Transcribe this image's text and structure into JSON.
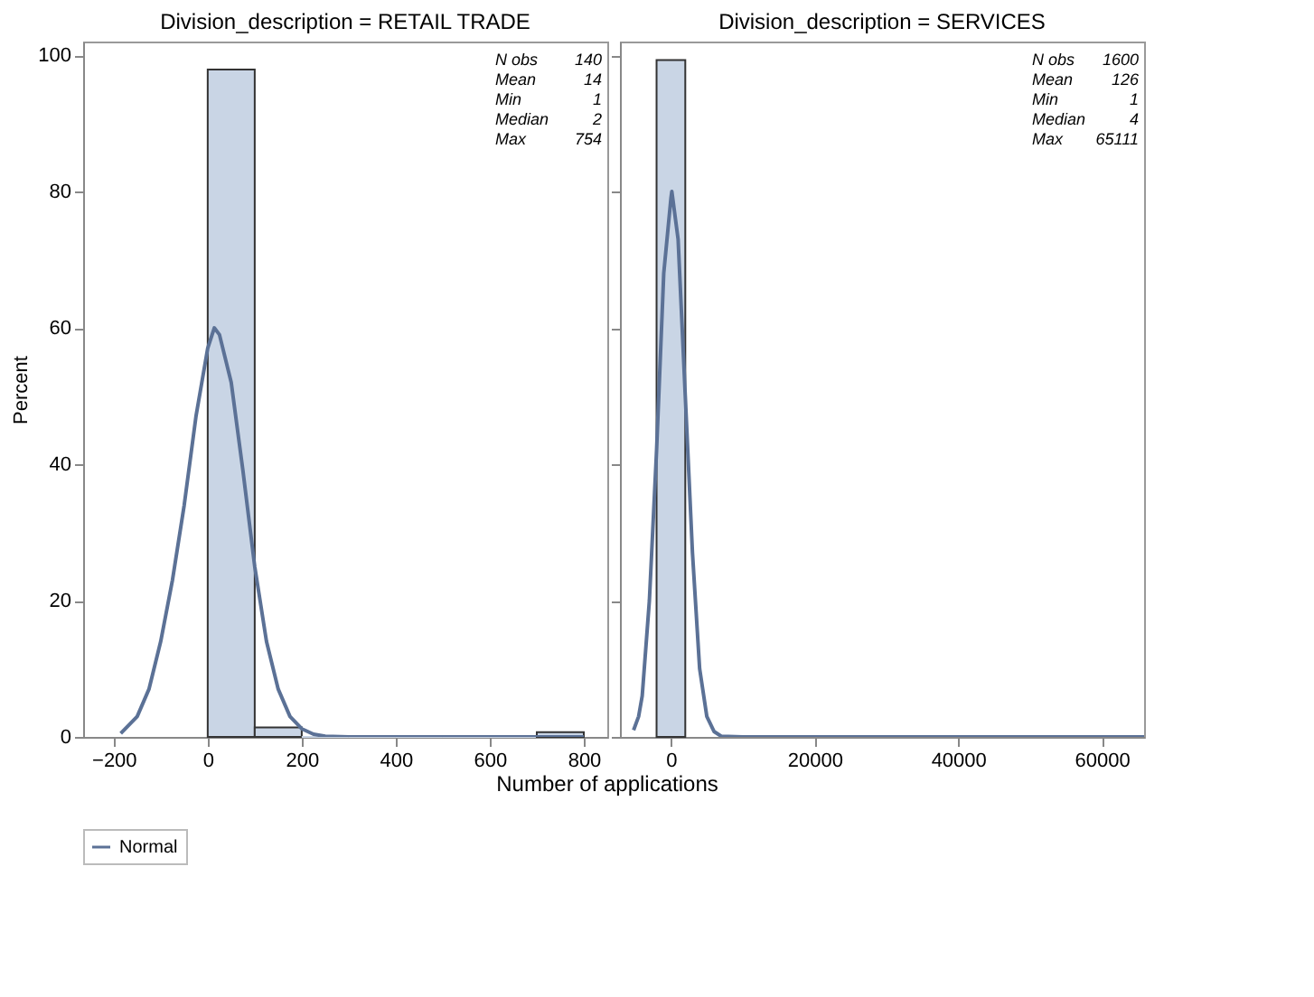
{
  "chart_data": [
    {
      "type": "histogram",
      "title": "Division_description = RETAIL TRADE",
      "ylabel": "Percent",
      "xlabel": "Number of applications",
      "bins": [
        0,
        100,
        200,
        300,
        400,
        500,
        600,
        700,
        800
      ],
      "values": [
        97.9,
        1.4,
        0,
        0,
        0,
        0,
        0,
        0.7
      ],
      "color": "#c9d5e5",
      "series": [
        {
          "name": "Normal",
          "type": "line",
          "color": "#5b7196",
          "x": [
            -185,
            -150,
            -125,
            -100,
            -75,
            -50,
            -25,
            0,
            14,
            25,
            50,
            75,
            100,
            125,
            150,
            175,
            200,
            225,
            250,
            300,
            800
          ],
          "values": [
            0.5,
            3,
            7,
            14,
            23,
            34,
            47,
            57,
            60,
            59,
            52,
            39,
            25,
            14,
            7,
            3,
            1.2,
            0.4,
            0.1,
            0,
            0
          ]
        }
      ],
      "xlim": [
        -265,
        850
      ],
      "xticks": [
        -200,
        0,
        200,
        400,
        600,
        800
      ],
      "ylim": [
        0,
        102
      ],
      "yticks": [
        0,
        20,
        40,
        60,
        80,
        100
      ],
      "annotations": [
        "N obs",
        "140",
        "Mean",
        "14",
        "Min",
        "1",
        "Median",
        "2",
        "Max",
        "754"
      ],
      "grid": false,
      "legend": "bottom"
    },
    {
      "type": "histogram",
      "title": "Division_description = SERVICES",
      "bins": [
        -2000,
        2000
      ],
      "values": [
        99.3
      ],
      "color": "#c9d5e5",
      "series": [
        {
          "name": "Normal",
          "type": "line",
          "color": "#5b7196",
          "x": [
            -5200,
            -4500,
            -4000,
            -3000,
            -2000,
            -1000,
            0,
            126,
            1000,
            2000,
            3000,
            4000,
            5000,
            6000,
            7000,
            10000,
            65900
          ],
          "values": [
            1,
            3,
            6,
            20,
            42,
            68,
            79,
            80,
            73,
            50,
            27,
            10,
            3,
            0.8,
            0.1,
            0,
            0
          ]
        }
      ],
      "xlim": [
        -7100,
        65900
      ],
      "xticks": [
        0,
        20000,
        40000,
        60000
      ],
      "ylim": [
        0,
        102
      ],
      "yticks": [
        0,
        20,
        40,
        60,
        80,
        100
      ],
      "annotations": [
        "N obs",
        "1600",
        "Mean",
        "126",
        "Min",
        "1",
        "Median",
        "4",
        "Max",
        "65111"
      ],
      "grid": false,
      "legend": "bottom",
      "tick_labels": "x"
    }
  ]
}
